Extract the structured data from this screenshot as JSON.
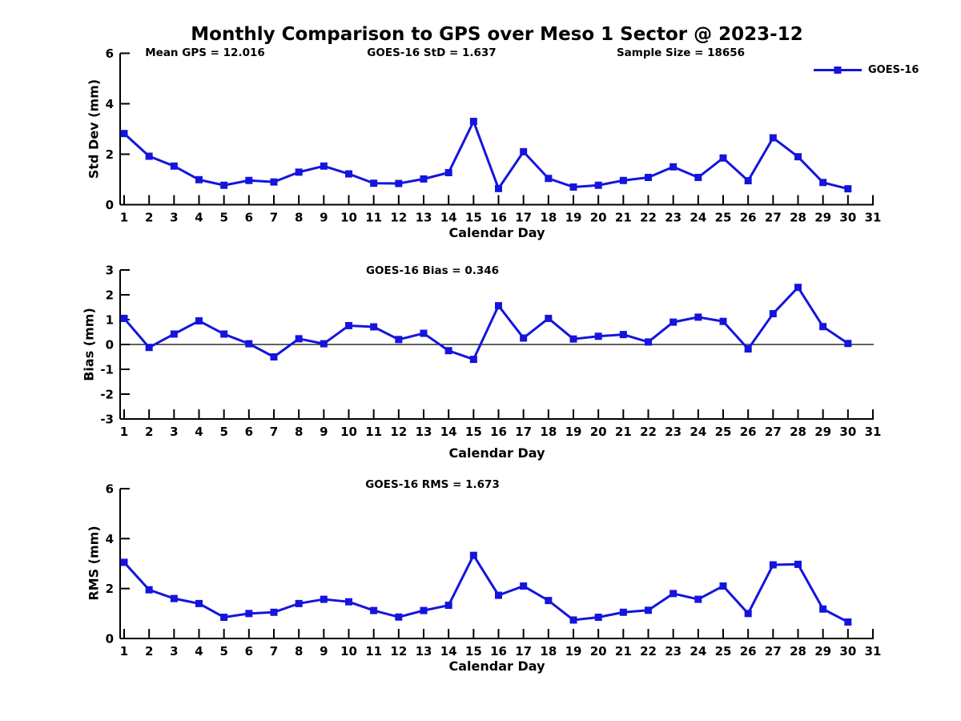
{
  "title": "Monthly Comparison to GPS over Meso 1 Sector @ 2023-12",
  "colors": {
    "series": "#1414dd",
    "axis": "#000000",
    "zero_line": "#000000",
    "text": "#000000"
  },
  "chart_data": [
    {
      "type": "line",
      "ylabel": "Std Dev (mm)",
      "xlabel": "Calendar Day",
      "ylim": [
        0,
        6
      ],
      "yticks": [
        0,
        2,
        4,
        6
      ],
      "xlim": [
        1,
        31
      ],
      "xticks": [
        1,
        2,
        3,
        4,
        5,
        6,
        7,
        8,
        9,
        10,
        11,
        12,
        13,
        14,
        15,
        16,
        17,
        18,
        19,
        20,
        21,
        22,
        23,
        24,
        25,
        26,
        27,
        28,
        29,
        30,
        31
      ],
      "x": [
        1,
        2,
        3,
        4,
        5,
        6,
        7,
        8,
        9,
        10,
        11,
        12,
        13,
        14,
        15,
        16,
        17,
        18,
        19,
        20,
        21,
        22,
        23,
        24,
        25,
        26,
        27,
        28,
        29,
        30
      ],
      "grid": false,
      "legend": {
        "label": "GOES-16",
        "position": "top-right"
      },
      "annotations": [
        {
          "text": "Mean GPS = 12.016",
          "x_center": 256
        },
        {
          "text": "GOES-16 StD = 1.637",
          "x_center": 539
        },
        {
          "text": "Sample Size = 18656",
          "x_center": 850
        }
      ],
      "series": [
        {
          "name": "GOES-16",
          "color": "#1414dd",
          "marker": "square",
          "values": [
            2.82,
            1.92,
            1.53,
            0.99,
            0.77,
            0.96,
            0.9,
            1.29,
            1.53,
            1.22,
            0.85,
            0.84,
            1.02,
            1.27,
            3.3,
            0.64,
            2.1,
            1.04,
            0.7,
            0.77,
            0.96,
            1.08,
            1.5,
            1.08,
            1.85,
            0.95,
            2.65,
            1.9,
            0.88,
            0.63
          ]
        }
      ]
    },
    {
      "type": "line",
      "ylabel": "Bias (mm)",
      "xlabel": "Calendar Day",
      "ylim": [
        -3,
        3
      ],
      "yticks": [
        -3,
        -2,
        -1,
        0,
        1,
        2,
        3
      ],
      "xlim": [
        1,
        31
      ],
      "xticks": [
        1,
        2,
        3,
        4,
        5,
        6,
        7,
        8,
        9,
        10,
        11,
        12,
        13,
        14,
        15,
        16,
        17,
        18,
        19,
        20,
        21,
        22,
        23,
        24,
        25,
        26,
        27,
        28,
        29,
        30,
        31
      ],
      "x": [
        1,
        2,
        3,
        4,
        5,
        6,
        7,
        8,
        9,
        10,
        11,
        12,
        13,
        14,
        15,
        16,
        17,
        18,
        19,
        20,
        21,
        22,
        23,
        24,
        25,
        26,
        27,
        28,
        29,
        30
      ],
      "grid": false,
      "zero_line": true,
      "annotations": [
        {
          "text": "GOES-16 Bias = 0.346",
          "x_center": 540
        }
      ],
      "series": [
        {
          "name": "GOES-16",
          "color": "#1414dd",
          "marker": "square",
          "values": [
            1.05,
            -0.12,
            0.42,
            0.95,
            0.42,
            0.03,
            -0.5,
            0.23,
            0.03,
            0.76,
            0.71,
            0.2,
            0.45,
            -0.25,
            -0.6,
            1.56,
            0.26,
            1.05,
            0.22,
            0.33,
            0.4,
            0.1,
            0.9,
            1.1,
            0.93,
            -0.18,
            1.24,
            2.3,
            0.72,
            0.04
          ]
        }
      ]
    },
    {
      "type": "line",
      "ylabel": "RMS (mm)",
      "xlabel": "Calendar Day",
      "ylim": [
        0,
        6
      ],
      "yticks": [
        0,
        2,
        4,
        6
      ],
      "xlim": [
        1,
        31
      ],
      "xticks": [
        1,
        2,
        3,
        4,
        5,
        6,
        7,
        8,
        9,
        10,
        11,
        12,
        13,
        14,
        15,
        16,
        17,
        18,
        19,
        20,
        21,
        22,
        23,
        24,
        25,
        26,
        27,
        28,
        29,
        30,
        31
      ],
      "x": [
        1,
        2,
        3,
        4,
        5,
        6,
        7,
        8,
        9,
        10,
        11,
        12,
        13,
        14,
        15,
        16,
        17,
        18,
        19,
        20,
        21,
        22,
        23,
        24,
        25,
        26,
        27,
        28,
        29,
        30
      ],
      "grid": false,
      "annotations": [
        {
          "text": "GOES-16 RMS = 1.673",
          "x_center": 540
        }
      ],
      "series": [
        {
          "name": "GOES-16",
          "color": "#1414dd",
          "marker": "square",
          "values": [
            3.05,
            1.95,
            1.6,
            1.4,
            0.85,
            1.0,
            1.05,
            1.4,
            1.57,
            1.47,
            1.12,
            0.86,
            1.12,
            1.33,
            3.33,
            1.73,
            2.1,
            1.52,
            0.74,
            0.85,
            1.05,
            1.13,
            1.8,
            1.57,
            2.1,
            1.0,
            2.95,
            2.97,
            1.18,
            0.66
          ]
        }
      ]
    }
  ]
}
